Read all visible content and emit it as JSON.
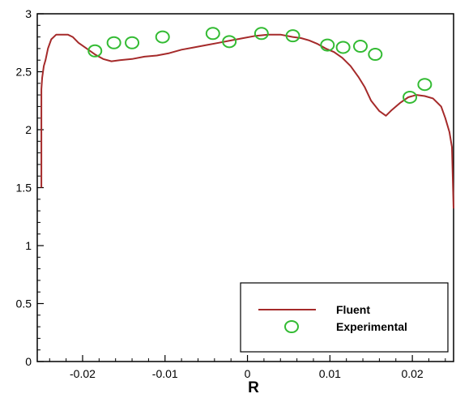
{
  "chart_data": {
    "type": "line",
    "xlabel": "R",
    "ylabel": "",
    "xlim": [
      -0.0255,
      0.025
    ],
    "ylim": [
      0,
      3
    ],
    "x_ticks": [
      -0.02,
      -0.01,
      0,
      0.01,
      0.02
    ],
    "x_tick_labels": [
      "-0.02",
      "-0.01",
      "0",
      "0.01",
      "0.02"
    ],
    "y_ticks": [
      0,
      0.5,
      1,
      1.5,
      2,
      2.5,
      3
    ],
    "y_tick_labels": [
      "0",
      "0.5",
      "1",
      "1.5",
      "2",
      "2.5",
      "3"
    ],
    "grid": false,
    "legend_position": "bottom-right",
    "colors": {
      "fluent": "#a52a2a",
      "experimental": "#33bb33",
      "axis": "#000000"
    },
    "series": [
      {
        "name": "Fluent",
        "kind": "line",
        "x": [
          -0.025,
          -0.025,
          -0.0249,
          -0.0247,
          -0.0245,
          -0.0242,
          -0.0238,
          -0.0232,
          -0.0225,
          -0.0218,
          -0.0212,
          -0.0205,
          -0.0195,
          -0.0185,
          -0.0175,
          -0.0165,
          -0.0155,
          -0.014,
          -0.0125,
          -0.011,
          -0.0095,
          -0.008,
          -0.0065,
          -0.005,
          -0.0035,
          -0.002,
          -0.0005,
          0.001,
          0.0025,
          0.004,
          0.0055,
          0.0065,
          0.0075,
          0.0085,
          0.0095,
          0.0105,
          0.0115,
          0.0125,
          0.0135,
          0.0142,
          0.015,
          0.016,
          0.0168,
          0.0175,
          0.0185,
          0.0195,
          0.0205,
          0.0215,
          0.0225,
          0.0235,
          0.024,
          0.0245,
          0.0248,
          0.025
        ],
        "y": [
          1.5,
          2.35,
          2.45,
          2.55,
          2.6,
          2.7,
          2.78,
          2.82,
          2.82,
          2.82,
          2.8,
          2.75,
          2.7,
          2.65,
          2.61,
          2.59,
          2.6,
          2.61,
          2.63,
          2.64,
          2.66,
          2.69,
          2.71,
          2.73,
          2.75,
          2.77,
          2.79,
          2.81,
          2.82,
          2.82,
          2.8,
          2.79,
          2.77,
          2.74,
          2.7,
          2.67,
          2.62,
          2.55,
          2.45,
          2.37,
          2.25,
          2.16,
          2.12,
          2.17,
          2.23,
          2.28,
          2.3,
          2.29,
          2.27,
          2.2,
          2.1,
          1.98,
          1.85,
          1.32
        ]
      },
      {
        "name": "Experimental",
        "kind": "scatter",
        "x": [
          -0.0185,
          -0.0162,
          -0.014,
          -0.0103,
          -0.0042,
          -0.0022,
          0.0017,
          0.0055,
          0.0097,
          0.0116,
          0.0137,
          0.0155,
          0.0197,
          0.0215
        ],
        "y": [
          2.68,
          2.75,
          2.75,
          2.8,
          2.83,
          2.76,
          2.83,
          2.81,
          2.73,
          2.71,
          2.72,
          2.65,
          2.28,
          2.39
        ]
      }
    ]
  }
}
